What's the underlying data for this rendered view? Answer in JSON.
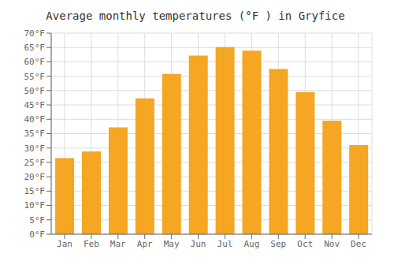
{
  "chart_data": {
    "type": "bar",
    "title": "Average monthly temperatures (°F ) in Gryfice",
    "categories": [
      "Jan",
      "Feb",
      "Mar",
      "Apr",
      "May",
      "Jun",
      "Jul",
      "Aug",
      "Sep",
      "Oct",
      "Nov",
      "Dec"
    ],
    "values": [
      26.5,
      28.8,
      37.2,
      47.3,
      55.8,
      62.2,
      65.1,
      63.9,
      57.5,
      49.5,
      39.5,
      31.0
    ],
    "color": "#F5A623",
    "ylim": [
      0,
      70
    ],
    "yticks": [
      {
        "value": 0,
        "label": "0°F"
      },
      {
        "value": 5,
        "label": "5°F"
      },
      {
        "value": 10,
        "label": "10°F"
      },
      {
        "value": 15,
        "label": "15°F"
      },
      {
        "value": 20,
        "label": "20°F"
      },
      {
        "value": 25,
        "label": "25°F"
      },
      {
        "value": 30,
        "label": "30°F"
      },
      {
        "value": 35,
        "label": "35°F"
      },
      {
        "value": 40,
        "label": "40°F"
      },
      {
        "value": 45,
        "label": "45°F"
      },
      {
        "value": 50,
        "label": "50°F"
      },
      {
        "value": 55,
        "label": "55°F"
      },
      {
        "value": 60,
        "label": "60°F"
      },
      {
        "value": 65,
        "label": "65°F"
      },
      {
        "value": 70,
        "label": "70°F"
      }
    ],
    "grid": true
  }
}
